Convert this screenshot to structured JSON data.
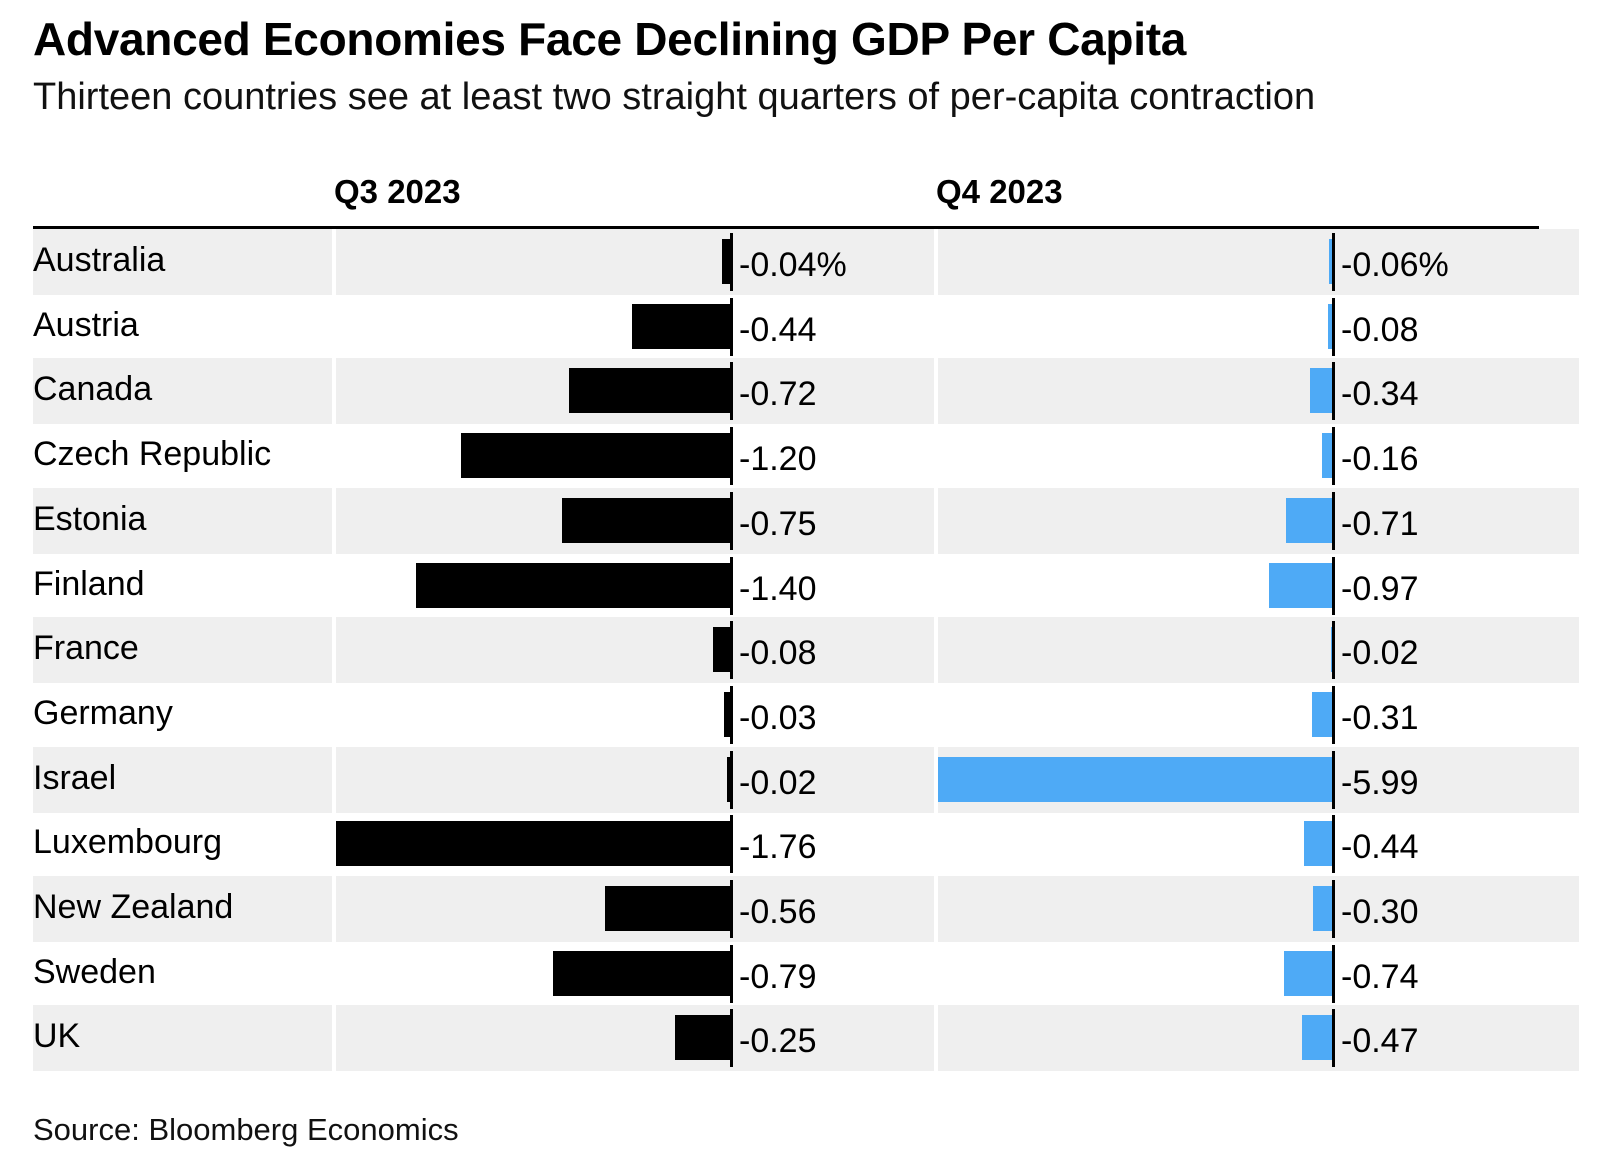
{
  "title": "Advanced Economies Face Declining GDP Per Capita",
  "subtitle": "Thirteen countries see at least two straight quarters of per-capita contraction",
  "source": "Source: Bloomberg Economics",
  "colors": {
    "q3": "#000000",
    "q4": "#4eaaf6",
    "shade": "#efefef"
  },
  "chart_data": {
    "type": "bar",
    "orientation": "horizontal",
    "categories": [
      "Australia",
      "Austria",
      "Canada",
      "Czech Republic",
      "Estonia",
      "Finland",
      "France",
      "Germany",
      "Israel",
      "Luxembourg",
      "New Zealand",
      "Sweden",
      "UK"
    ],
    "series": [
      {
        "name": "Q3 2023",
        "values": [
          -0.04,
          -0.44,
          -0.72,
          -1.2,
          -0.75,
          -1.4,
          -0.08,
          -0.03,
          -0.02,
          -1.76,
          -0.56,
          -0.79,
          -0.25
        ],
        "labels": [
          "-0.04%",
          "-0.44",
          "-0.72",
          "-1.20",
          "-0.75",
          "-1.40",
          "-0.08",
          "-0.03",
          "-0.02",
          "-1.76",
          "-0.56",
          "-0.79",
          "-0.25"
        ]
      },
      {
        "name": "Q4 2023",
        "values": [
          -0.06,
          -0.08,
          -0.34,
          -0.16,
          -0.71,
          -0.97,
          -0.02,
          -0.31,
          -5.99,
          -0.44,
          -0.3,
          -0.74,
          -0.47
        ],
        "labels": [
          "-0.06%",
          "-0.08",
          "-0.34",
          "-0.16",
          "-0.71",
          "-0.97",
          "-0.02",
          "-0.31",
          "-5.99",
          "-0.44",
          "-0.30",
          "-0.74",
          "-0.47"
        ]
      }
    ],
    "unit": "%",
    "grid": false,
    "legend": "none"
  }
}
